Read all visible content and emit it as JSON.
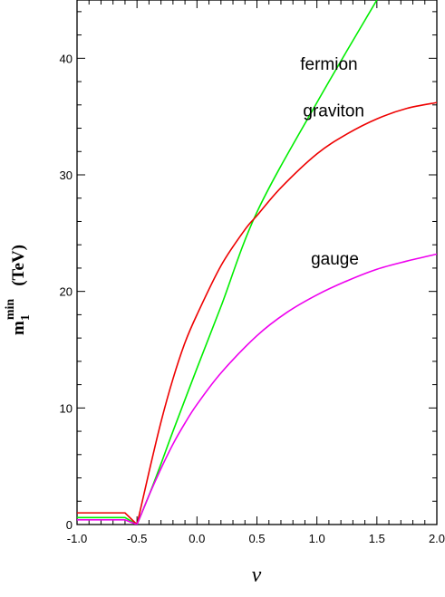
{
  "chart_data": {
    "type": "line",
    "title": "",
    "xlabel": "ν",
    "ylabel": {
      "base": "m",
      "subscript": "1",
      "superscript": "min",
      "unit": "(TeV)"
    },
    "xlim": [
      -1.0,
      2.0
    ],
    "ylim": [
      0,
      45
    ],
    "x_ticks": [
      -1.0,
      -0.5,
      0.0,
      0.5,
      1.0,
      1.5,
      2.0
    ],
    "x_tick_labels": [
      "-1.0",
      "-0.5",
      "0.0",
      "0.5",
      "1.0",
      "1.5",
      "2.0"
    ],
    "y_ticks": [
      0,
      10,
      20,
      30,
      40
    ],
    "y_tick_labels": [
      "0",
      "10",
      "20",
      "30",
      "40"
    ],
    "grid": false,
    "legend": "none",
    "series": [
      {
        "name": "fermion",
        "color": "#00ee00",
        "x": [
          -1.0,
          -0.6,
          -0.5,
          -0.4,
          -0.3,
          -0.2,
          0.0,
          0.2,
          0.5,
          1.0,
          1.5
        ],
        "values": [
          0.6,
          0.6,
          0.0,
          2.5,
          5.2,
          8.0,
          13.4,
          18.7,
          26.8,
          36.2,
          45.0
        ]
      },
      {
        "name": "graviton",
        "color": "#ee0000",
        "x": [
          -1.0,
          -0.6,
          -0.5,
          -0.4,
          -0.3,
          -0.2,
          -0.1,
          0.0,
          0.2,
          0.4,
          0.5,
          0.7,
          1.0,
          1.25,
          1.5,
          1.75,
          2.0
        ],
        "values": [
          1.0,
          1.0,
          0.0,
          4.5,
          8.8,
          12.5,
          15.6,
          18.0,
          22.2,
          25.3,
          26.5,
          28.9,
          31.8,
          33.5,
          34.8,
          35.7,
          36.2
        ]
      },
      {
        "name": "gauge",
        "color": "#ee00ee",
        "x": [
          -1.0,
          -0.6,
          -0.5,
          -0.4,
          -0.3,
          -0.2,
          -0.1,
          0.0,
          0.2,
          0.5,
          0.75,
          1.0,
          1.25,
          1.5,
          1.75,
          2.0
        ],
        "values": [
          0.4,
          0.4,
          0.0,
          2.5,
          4.8,
          6.9,
          8.7,
          10.3,
          13.0,
          16.2,
          18.2,
          19.7,
          20.9,
          21.9,
          22.6,
          23.2
        ]
      }
    ],
    "annotations": [
      {
        "text": "fermion",
        "x": 1.1,
        "y": 39.0
      },
      {
        "text": "graviton",
        "x": 1.14,
        "y": 35.0
      },
      {
        "text": "gauge",
        "x": 1.15,
        "y": 22.3
      }
    ]
  }
}
